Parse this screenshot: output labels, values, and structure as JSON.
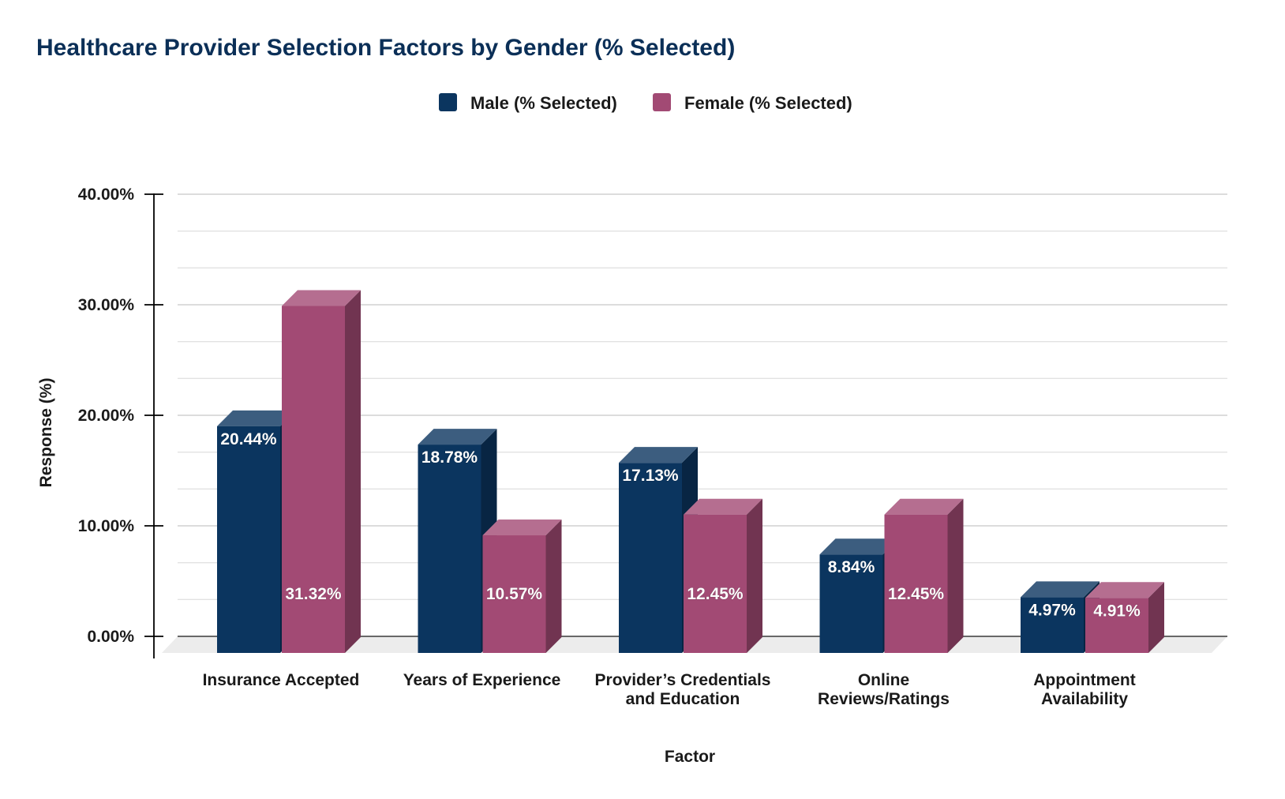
{
  "chart_data": {
    "type": "bar",
    "title": "Healthcare Provider Selection Factors by Gender (% Selected)",
    "xlabel": "Factor",
    "ylabel": "Response (%)",
    "ylim": [
      0,
      40
    ],
    "yticks": [
      "0.00%",
      "10.00%",
      "20.00%",
      "30.00%",
      "40.00%"
    ],
    "grid": true,
    "legend_position": "top-center",
    "categories": [
      [
        "Insurance Accepted"
      ],
      [
        "Years of Experience"
      ],
      [
        "Provider’s Credentials",
        "and Education"
      ],
      [
        "Online",
        "Reviews/Ratings"
      ],
      [
        "Appointment",
        "Availability"
      ]
    ],
    "series": [
      {
        "name": "Male (% Selected)",
        "color": "#0b355f",
        "values": [
          20.44,
          18.78,
          17.13,
          8.84,
          4.97
        ],
        "labels": [
          "20.44%",
          "18.78%",
          "17.13%",
          "8.84%",
          "4.97%"
        ]
      },
      {
        "name": "Female (% Selected)",
        "color": "#a24a74",
        "values": [
          31.32,
          10.57,
          12.45,
          12.45,
          4.91
        ],
        "labels": [
          "31.32%",
          "10.57%",
          "12.45%",
          "12.45%",
          "4.91%"
        ]
      }
    ]
  }
}
